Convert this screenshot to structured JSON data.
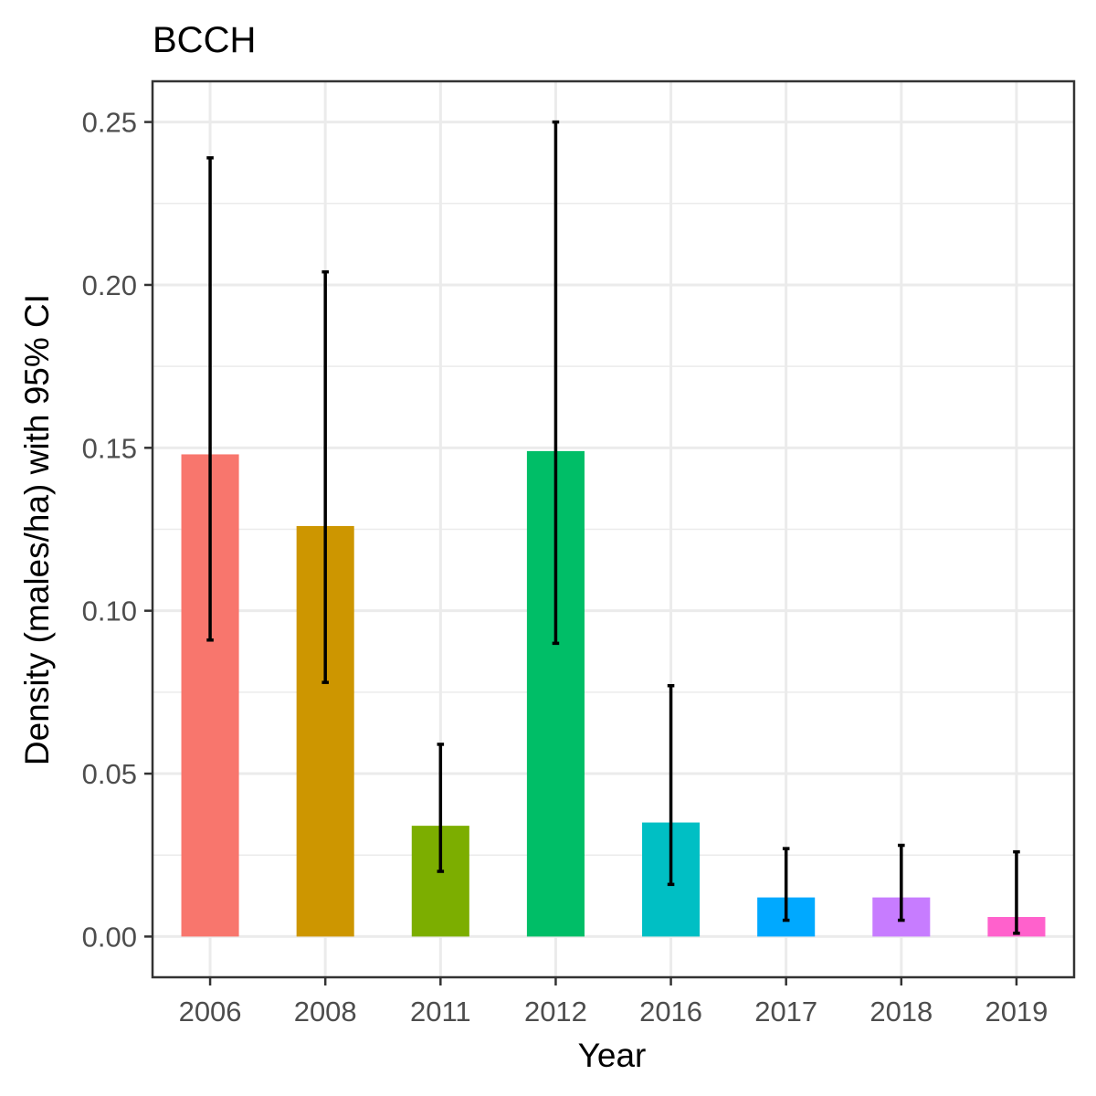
{
  "chart_data": {
    "type": "bar",
    "title": "BCCH",
    "xlabel": "Year",
    "ylabel": "Density (males/ha) with 95% CI",
    "categories": [
      "2006",
      "2008",
      "2011",
      "2012",
      "2016",
      "2017",
      "2018",
      "2019"
    ],
    "values": [
      0.148,
      0.126,
      0.034,
      0.149,
      0.035,
      0.012,
      0.012,
      0.006
    ],
    "ci_lower": [
      0.091,
      0.078,
      0.02,
      0.09,
      0.016,
      0.005,
      0.005,
      0.001
    ],
    "ci_upper": [
      0.239,
      0.204,
      0.059,
      0.25,
      0.077,
      0.027,
      0.028,
      0.026
    ],
    "colors": [
      "#F8766D",
      "#CD9600",
      "#7CAE00",
      "#00BE67",
      "#00BFC4",
      "#00A9FF",
      "#C77CFF",
      "#FF61CC"
    ],
    "ylim": [
      -0.0125,
      0.2625
    ],
    "yticks": [
      "0.00",
      "0.05",
      "0.10",
      "0.15",
      "0.20",
      "0.25"
    ],
    "ytick_values": [
      0,
      0.05,
      0.1,
      0.15,
      0.2,
      0.25
    ],
    "grid": true,
    "legend": "none"
  }
}
